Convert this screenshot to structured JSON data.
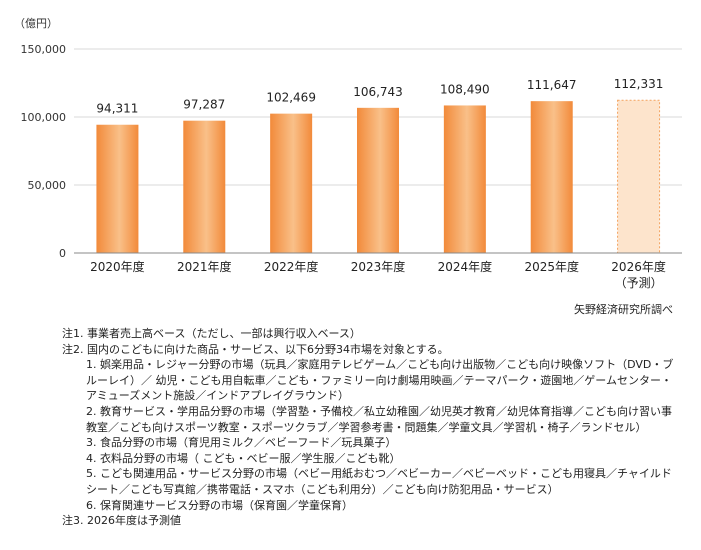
{
  "chart_data": {
    "type": "bar",
    "unit_label": "（億円）",
    "categories": [
      "2020年度",
      "2021年度",
      "2022年度",
      "2023年度",
      "2024年度",
      "2025年度",
      "2026年度"
    ],
    "category_sublabels": [
      "",
      "",
      "",
      "",
      "",
      "",
      "（予測）"
    ],
    "values": [
      94311,
      97287,
      102469,
      106743,
      108490,
      111647,
      112331
    ],
    "value_labels": [
      "94,311",
      "97,287",
      "102,469",
      "106,743",
      "108,490",
      "111,647",
      "112,331"
    ],
    "forecast_index": 6,
    "ylim": [
      0,
      150000
    ],
    "yticks": [
      0,
      50000,
      100000,
      150000
    ],
    "ytick_labels": [
      "0",
      "50,000",
      "100,000",
      "150,000"
    ],
    "grid": true,
    "colors": {
      "bar": "#f39a4c",
      "bar_light": "#f9c089",
      "forecast": "#fde4cc",
      "forecast_border": "#f3a360"
    }
  },
  "source": "矢野経済研究所調べ",
  "notes": {
    "note1": "注1. 事業者売上高ベース（ただし、一部は興行収入ベース）",
    "note2": "注2. 国内のこどもに向けた商品・サービス、以下6分野34市場を対象とする。",
    "items": [
      "1.  娯楽用品・レジャー分野の市場（玩具／家庭用テレビゲーム／こども向け出版物／こども向け映像ソフト（DVD・ブルーレイ）／ 幼児・こども用自転車／こども・ファミリー向け劇場用映画／テーマパーク・遊園地／ゲームセンター・アミューズメント施設／インドアプレイグラウンド）",
      "2.  教育サービス・学用品分野の市場（学習塾・予備校／私立幼稚園／幼児英才教育／幼児体育指導／こども向け習い事教室／こども向けスポーツ教室・スポーツクラブ／学習参考書・問題集／学童文具／学習机・椅子／ランドセル）",
      "3.  食品分野の市場（育児用ミルク／ベビーフード／玩具菓子）",
      "4.  衣料品分野の市場（ こども・ベビー服／学生服／こども靴）",
      "5.  こども関連用品・サービス分野の市場（ベビー用紙おむつ／ベビーカー／ベビーベッド・こども用寝具／チャイルドシート／こども写真館／携帯電話・スマホ（こども利用分）／こども向け防犯用品・サービス）",
      "6.  保育関連サービス分野の市場（保育園／学童保育）"
    ],
    "note3": "注3. 2026年度は予測値"
  }
}
